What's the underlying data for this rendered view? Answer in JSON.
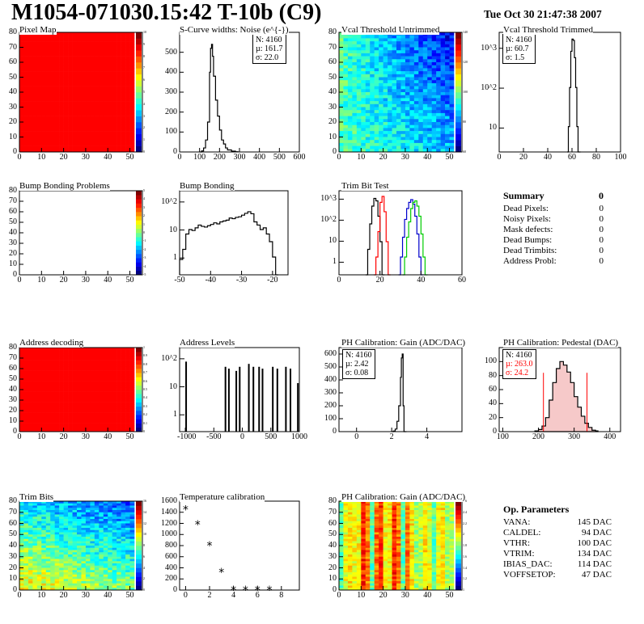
{
  "header": {
    "title": "M1054-071030.15:42 T-10b (C9)",
    "date": "Tue Oct 30 21:47:38 2007"
  },
  "chart_data": [
    {
      "type": "heatmap",
      "title": "Pixel Map",
      "color": "#ff0000",
      "xlim": [
        0,
        52
      ],
      "ylim": [
        0,
        80
      ],
      "xticks": [
        0,
        10,
        20,
        30,
        40,
        50
      ],
      "yticks": [
        0,
        10,
        20,
        30,
        40,
        50,
        60,
        70,
        80
      ],
      "colorbar_ticks": [
        0,
        1,
        2,
        3,
        4,
        5,
        6,
        7,
        8,
        9,
        10
      ]
    },
    {
      "type": "line",
      "title": "S-Curve widths: Noise (e^{-})",
      "stats": {
        "N": "4160",
        "mu": "161.7",
        "sigma": "22.0"
      },
      "xlim": [
        0,
        600
      ],
      "ylim": [
        0,
        600
      ],
      "xticks": [
        0,
        100,
        200,
        300,
        400,
        500,
        600
      ],
      "yticks": [
        0,
        100,
        200,
        300,
        400,
        500
      ],
      "x": [
        100,
        110,
        120,
        130,
        140,
        150,
        155,
        160,
        165,
        170,
        180,
        190,
        200,
        210,
        220,
        230,
        240,
        260,
        280
      ],
      "y": [
        0,
        5,
        20,
        60,
        150,
        400,
        520,
        540,
        480,
        380,
        260,
        180,
        110,
        60,
        40,
        20,
        10,
        4,
        1
      ]
    },
    {
      "type": "heatmap",
      "title": "Vcal Threshold Untrimmed",
      "xlim": [
        0,
        52
      ],
      "ylim": [
        0,
        80
      ],
      "xticks": [
        0,
        10,
        20,
        30,
        40,
        50
      ],
      "yticks": [
        0,
        10,
        20,
        30,
        40,
        50,
        60,
        70,
        80
      ],
      "colorbar_ticks": [
        60,
        80,
        100,
        120,
        140
      ]
    },
    {
      "type": "line",
      "title": "Vcal Threshold Trimmed",
      "log_y": true,
      "stats": {
        "N": "4160",
        "mu": "60.7",
        "sigma": "1.5"
      },
      "xlim": [
        0,
        100
      ],
      "ylim": [
        1,
        2000
      ],
      "xticks": [
        0,
        20,
        40,
        60,
        80,
        100
      ],
      "ytick_labels": [
        "10",
        "10^2",
        "10^3"
      ],
      "x": [
        56,
        57,
        58,
        59,
        60,
        61,
        62,
        63,
        64,
        65
      ],
      "y": [
        1,
        5,
        60,
        600,
        1300,
        1200,
        400,
        60,
        5,
        1
      ]
    },
    {
      "type": "heatmap",
      "title": "Bump Bonding Problems",
      "empty": true,
      "xlim": [
        0,
        52
      ],
      "ylim": [
        0,
        80
      ],
      "xticks": [
        0,
        10,
        20,
        30,
        40,
        50
      ],
      "yticks": [
        0,
        10,
        20,
        30,
        40,
        50,
        60,
        70,
        80
      ],
      "colorbar_ticks": [
        -5,
        -4,
        -3,
        -2,
        -1,
        0,
        1,
        2,
        3,
        4,
        5
      ]
    },
    {
      "type": "line",
      "title": "Bump Bonding",
      "log_y": true,
      "xlim": [
        -50,
        -15
      ],
      "ylim": [
        1,
        2000
      ],
      "xticks": [
        -50,
        -40,
        -30,
        -20
      ],
      "ytick_labels": [
        "1",
        "10",
        "10^2"
      ],
      "x": [
        -50,
        -49,
        -48,
        -47,
        -46,
        -45,
        -44,
        -43,
        -42,
        -41,
        -40,
        -39,
        -38,
        -37,
        -36,
        -35,
        -34,
        -33,
        -32,
        -31,
        -30,
        -29,
        -28,
        -27,
        -26,
        -25,
        -24,
        -23,
        -22,
        -21,
        -20,
        -19
      ],
      "y": [
        4,
        10,
        40,
        60,
        55,
        70,
        90,
        80,
        75,
        85,
        95,
        110,
        100,
        120,
        130,
        140,
        170,
        160,
        180,
        190,
        220,
        260,
        300,
        250,
        120,
        90,
        60,
        70,
        40,
        20,
        5,
        1
      ]
    },
    {
      "type": "line",
      "title": "Trim Bit Test",
      "log_y": true,
      "xlim": [
        0,
        60
      ],
      "ylim": [
        1,
        2000
      ],
      "xticks": [
        0,
        20,
        40,
        60
      ],
      "ytick_labels": [
        "1",
        "10",
        "10^2",
        "10^3"
      ],
      "series": [
        {
          "color": "#000000",
          "x": [
            13,
            14,
            15,
            16,
            17,
            18,
            19,
            20,
            21
          ],
          "y": [
            1,
            10,
            100,
            500,
            1000,
            800,
            200,
            20,
            1
          ]
        },
        {
          "color": "#ff0000",
          "x": [
            17,
            18,
            19,
            20,
            21,
            22,
            23,
            24
          ],
          "y": [
            1,
            5,
            50,
            700,
            1200,
            300,
            20,
            1
          ]
        },
        {
          "color": "#0000cc",
          "x": [
            29,
            30,
            31,
            32,
            33,
            34,
            35,
            36,
            37,
            38,
            39,
            40
          ],
          "y": [
            1,
            5,
            30,
            150,
            400,
            700,
            900,
            600,
            200,
            40,
            5,
            1
          ]
        },
        {
          "color": "#00cc00",
          "x": [
            31,
            32,
            33,
            34,
            35,
            36,
            37,
            38,
            39,
            40,
            41,
            42
          ],
          "y": [
            1,
            5,
            30,
            120,
            400,
            700,
            800,
            500,
            200,
            40,
            5,
            1
          ]
        }
      ]
    },
    {
      "type": "table",
      "title": "Summary",
      "total": "0",
      "rows": [
        {
          "label": "Dead Pixels:",
          "value": "0"
        },
        {
          "label": "Noisy Pixels:",
          "value": "0"
        },
        {
          "label": "Mask defects:",
          "value": "0"
        },
        {
          "label": "Dead Bumps:",
          "value": "0"
        },
        {
          "label": "Dead Trimbits:",
          "value": "0"
        },
        {
          "label": "Address Probl:",
          "value": "0"
        }
      ]
    },
    {
      "type": "heatmap",
      "title": "Address decoding",
      "color": "#ff0000",
      "xlim": [
        0,
        52
      ],
      "ylim": [
        0,
        80
      ],
      "xticks": [
        0,
        10,
        20,
        30,
        40,
        50
      ],
      "yticks": [
        0,
        10,
        20,
        30,
        40,
        50,
        60,
        70,
        80
      ],
      "colorbar_ticks": [
        0,
        0.1,
        0.2,
        0.3,
        0.4,
        0.5,
        0.6,
        0.7,
        0.8,
        0.9,
        1
      ]
    },
    {
      "type": "bar",
      "title": "Address Levels",
      "log_y": true,
      "xlim": [
        -1100,
        1000
      ],
      "ylim": [
        0.5,
        2000
      ],
      "xticks": [
        -1000,
        -500,
        0,
        500,
        1000
      ],
      "ytick_labels": [
        "1",
        "10",
        "10^2"
      ],
      "x": [
        -1000,
        -310,
        -250,
        -120,
        -60,
        100,
        180,
        280,
        340,
        520,
        600,
        750,
        830,
        960
      ],
      "y": [
        500,
        300,
        250,
        200,
        300,
        400,
        300,
        300,
        250,
        300,
        250,
        300,
        250,
        60
      ]
    },
    {
      "type": "line",
      "title": "PH Calibration: Gain (ADC/DAC)",
      "stats": {
        "N": "4160",
        "mu": "2.42",
        "sigma": "0.08"
      },
      "xlim": [
        -1,
        6
      ],
      "ylim": [
        0,
        650
      ],
      "xticks": [
        0,
        2,
        4
      ],
      "yticks": [
        0,
        100,
        200,
        300,
        400,
        500,
        600
      ],
      "x": [
        2.0,
        2.1,
        2.2,
        2.3,
        2.4,
        2.5,
        2.55,
        2.6,
        2.65,
        2.7
      ],
      "y": [
        0,
        5,
        20,
        80,
        200,
        420,
        570,
        600,
        200,
        0
      ]
    },
    {
      "type": "area",
      "title": "PH Calibration: Pedestal (DAC)",
      "stats": {
        "N": "4160",
        "mu": "263.0",
        "sigma": "24.2"
      },
      "xlim": [
        90,
        430
      ],
      "ylim": [
        0,
        120
      ],
      "xticks": [
        100,
        200,
        300,
        400
      ],
      "yticks": [
        0,
        20,
        40,
        60,
        80,
        100
      ],
      "x": [
        190,
        200,
        210,
        220,
        230,
        240,
        250,
        260,
        270,
        280,
        290,
        300,
        310,
        320,
        330,
        340,
        350,
        360
      ],
      "y": [
        1,
        3,
        8,
        20,
        45,
        70,
        90,
        100,
        95,
        85,
        70,
        50,
        35,
        22,
        12,
        6,
        2,
        1
      ],
      "marker_lines": [
        214,
        336
      ]
    },
    {
      "type": "heatmap",
      "title": "Trim Bits",
      "xlim": [
        0,
        52
      ],
      "ylim": [
        0,
        80
      ],
      "xticks": [
        0,
        10,
        20,
        30,
        40,
        50
      ],
      "yticks": [
        0,
        10,
        20,
        30,
        40,
        50,
        60,
        70,
        80
      ],
      "colorbar_ticks": [
        0,
        2,
        4,
        6,
        8,
        10,
        12,
        14,
        16
      ]
    },
    {
      "type": "scatter",
      "title": "Temperature calibration",
      "xlim": [
        -0.5,
        9.5
      ],
      "ylim": [
        0,
        1600
      ],
      "xticks": [
        0,
        2,
        4,
        6,
        8
      ],
      "yticks": [
        0,
        200,
        400,
        600,
        800,
        1000,
        1200,
        1400,
        1600
      ],
      "x": [
        0,
        1,
        2,
        3,
        4,
        5,
        6,
        7
      ],
      "y": [
        1450,
        1180,
        800,
        320,
        0,
        0,
        0,
        0
      ]
    },
    {
      "type": "heatmap",
      "title": "PH Calibration: Gain (ADC/DAC)",
      "xlim": [
        0,
        52
      ],
      "ylim": [
        0,
        80
      ],
      "xticks": [
        0,
        10,
        20,
        30,
        40,
        50
      ],
      "yticks": [
        0,
        10,
        20,
        30,
        40,
        50,
        60,
        70,
        80
      ],
      "colorbar_ticks": [
        1,
        1.2,
        1.4,
        1.6,
        1.8,
        2,
        2.2,
        2.4,
        2.6
      ]
    },
    {
      "type": "table",
      "title": "Op. Parameters",
      "rows": [
        {
          "label": "VANA:",
          "value": "145 DAC"
        },
        {
          "label": "CALDEL:",
          "value": "94 DAC"
        },
        {
          "label": "VTHR:",
          "value": "100 DAC"
        },
        {
          "label": "VTRIM:",
          "value": "134 DAC"
        },
        {
          "label": "IBIAS_DAC:",
          "value": "114 DAC"
        },
        {
          "label": "VOFFSETOP:",
          "value": "47 DAC"
        }
      ]
    }
  ]
}
